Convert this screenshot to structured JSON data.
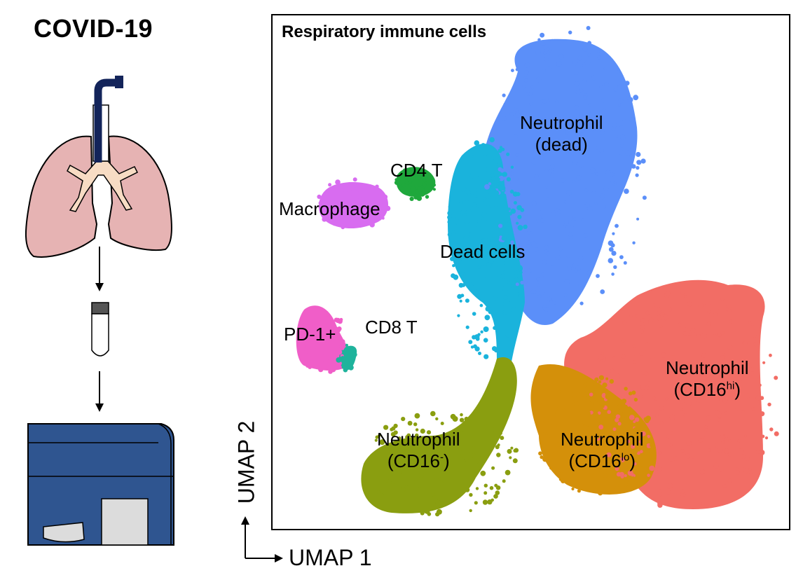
{
  "title": "COVID-19",
  "plot": {
    "title": "Respiratory immune cells",
    "x_label": "UMAP 1",
    "y_label": "UMAP 2"
  },
  "clusters": [
    {
      "key": "neutrophil_dead",
      "line1": "Neutrophil",
      "line2": "(dead)",
      "sup": "",
      "suffix": "",
      "color": "#5b8ff9"
    },
    {
      "key": "dead_cells",
      "line1": "Dead cells",
      "color": "#1ab3dc"
    },
    {
      "key": "cd4_t",
      "line1": "CD4 T",
      "color": "#1fa83c"
    },
    {
      "key": "macrophage",
      "line1": "Macrophage",
      "color": "#d86cf0"
    },
    {
      "key": "pd1",
      "line1": "PD-1+",
      "color": "#f05ec8"
    },
    {
      "key": "cd8_t",
      "line1": "CD8 T",
      "color": "#1fb39c"
    },
    {
      "key": "neutrophil_cd16hi",
      "line1": "Neutrophil",
      "line2_pre": "(CD16",
      "sup": "hi",
      "line2_post": ")",
      "color": "#f26d65"
    },
    {
      "key": "neutrophil_cd16lo",
      "line1": "Neutrophil",
      "line2_pre": "(CD16",
      "sup": "lo",
      "line2_post": ")",
      "color": "#d4900a"
    },
    {
      "key": "neutrophil_cd16neg",
      "line1": "Neutrophil",
      "line2_pre": "(CD16",
      "sup": "-",
      "line2_post": ")",
      "color": "#8a9e10"
    }
  ],
  "colors": {
    "lung": "#e6b3b3",
    "bronchi": "#f7dcc4",
    "trachea": "#13245a",
    "instrument": "#2f5590",
    "instrument_dark": "#233f6e",
    "tube_cap": "#555555"
  }
}
